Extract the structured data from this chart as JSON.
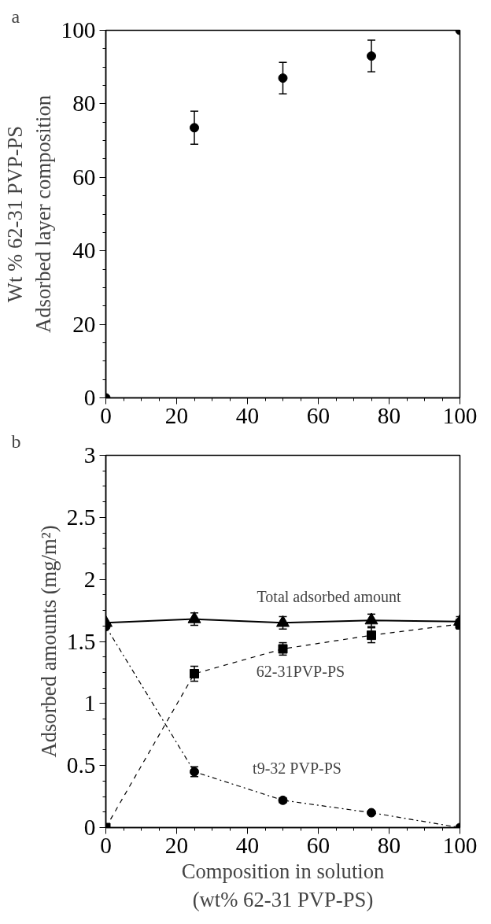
{
  "chart_data": [
    {
      "type": "scatter",
      "ylabel": "Wt % 62-31 PVP-PS\nAdsorbed layer composition",
      "annotations": [
        "a"
      ],
      "x": [
        0,
        25,
        50,
        75,
        100
      ],
      "series": [
        {
          "color": "#000000",
          "values": [
            0,
            73.5,
            87,
            93,
            100
          ],
          "errors": [
            null,
            4.5,
            4.3,
            4.3,
            null
          ],
          "marker": "circle"
        }
      ],
      "xlim": [
        0,
        100
      ],
      "xticks": [
        0,
        20,
        40,
        60,
        80,
        100
      ],
      "ylim": [
        0,
        100
      ],
      "yticks": [
        0,
        20,
        40,
        60,
        80,
        100
      ],
      "grid": false
    },
    {
      "type": "line",
      "xlabel": "Composition in solution\n(wt% 62-31 PVP-PS)",
      "ylabel": "Adsorbed amounts (mg/m²)",
      "annotations": [
        "b",
        "Total adsorbed amount",
        "62-31PVP-PS",
        "t9-32 PVP-PS"
      ],
      "x": [
        0,
        25,
        50,
        75,
        100
      ],
      "series": [
        {
          "color": "#000000",
          "values": [
            1.65,
            1.68,
            1.65,
            1.67,
            1.66
          ],
          "errors": [
            null,
            0.05,
            0.05,
            0.05,
            0.04
          ],
          "marker": "triangle",
          "line_style": "solid"
        },
        {
          "color": "#000000",
          "values": [
            0,
            1.24,
            1.44,
            1.55,
            1.64
          ],
          "errors": [
            null,
            0.06,
            0.05,
            0.06,
            0.04
          ],
          "marker": "square",
          "line_style": "dashed"
        },
        {
          "color": "#000000",
          "values": [
            1.62,
            0.45,
            0.22,
            0.12,
            0
          ],
          "errors": [
            null,
            0.04,
            0.02,
            null,
            null
          ],
          "marker": "circle",
          "line_style": "dashdot"
        }
      ],
      "xlim": [
        0,
        100
      ],
      "xticks": [
        0,
        20,
        40,
        60,
        80,
        100
      ],
      "ylim": [
        0,
        3
      ],
      "yticks": [
        0,
        0.5,
        1,
        1.5,
        2,
        2.5,
        3
      ],
      "grid": false
    }
  ]
}
